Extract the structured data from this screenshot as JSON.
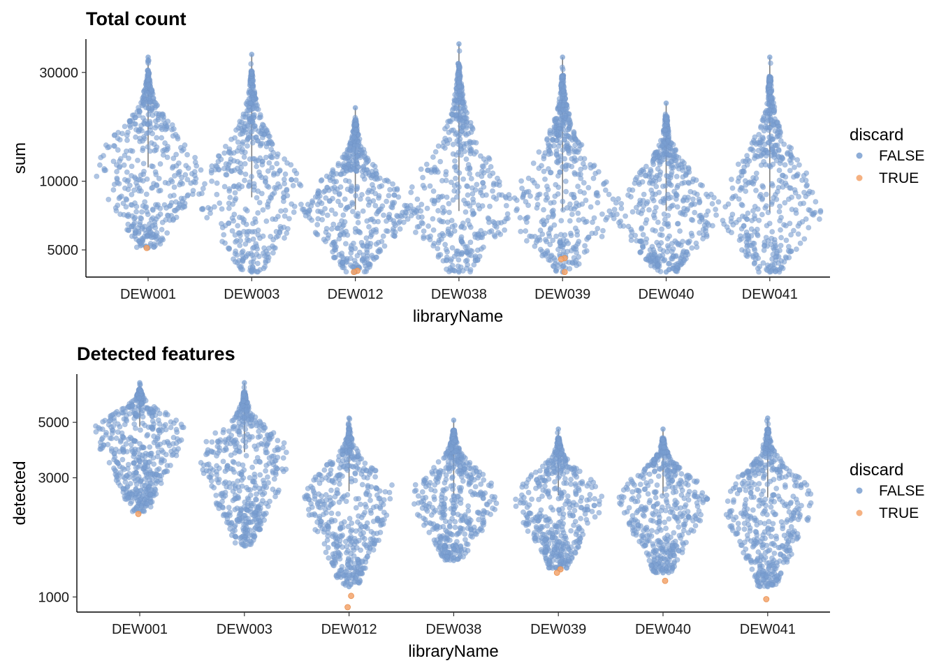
{
  "figure": {
    "legend": {
      "title": "discard",
      "items": [
        {
          "label": "FALSE",
          "color": "#7a9fd0"
        },
        {
          "label": "TRUE",
          "color": "#f3a36b"
        }
      ]
    }
  },
  "chart_data": [
    {
      "type": "scatter",
      "subtype": "violin-beeswarm",
      "title": "Total count",
      "xlabel": "libraryName",
      "ylabel": "sum",
      "y_scale": "log",
      "ylim": [
        3800,
        42000
      ],
      "yticks": [
        5000,
        10000,
        30000
      ],
      "ytick_labels": [
        "5000",
        "10000",
        "30000"
      ],
      "categories": [
        "DEW001",
        "DEW003",
        "DEW012",
        "DEW038",
        "DEW039",
        "DEW040",
        "DEW041"
      ],
      "series": [
        {
          "name": "FALSE",
          "color": "#7a9fd0",
          "summary": [
            {
              "min": 5100,
              "median": 11500,
              "max": 35000
            },
            {
              "min": 4000,
              "median": 8500,
              "max": 36000
            },
            {
              "min": 4000,
              "median": 7500,
              "max": 21000
            },
            {
              "min": 4000,
              "median": 7400,
              "max": 40000
            },
            {
              "min": 4000,
              "median": 7400,
              "max": 35000
            },
            {
              "min": 4000,
              "median": 7400,
              "max": 22000
            },
            {
              "min": 4000,
              "median": 7300,
              "max": 35000
            }
          ]
        },
        {
          "name": "TRUE",
          "color": "#f3a36b",
          "points": [
            {
              "category": "DEW001",
              "y": 5100
            },
            {
              "category": "DEW012",
              "y": 4050
            },
            {
              "category": "DEW012",
              "y": 4000
            },
            {
              "category": "DEW039",
              "y": 4600
            },
            {
              "category": "DEW039",
              "y": 4550
            },
            {
              "category": "DEW039",
              "y": 4000
            }
          ]
        }
      ],
      "legend": "right"
    },
    {
      "type": "scatter",
      "subtype": "violin-beeswarm",
      "title": "Detected features",
      "xlabel": "libraryName",
      "ylabel": "detected",
      "y_scale": "log",
      "ylim": [
        870,
        7800
      ],
      "yticks": [
        1000,
        3000,
        5000
      ],
      "ytick_labels": [
        "1000",
        "3000",
        "5000"
      ],
      "categories": [
        "DEW001",
        "DEW003",
        "DEW012",
        "DEW038",
        "DEW039",
        "DEW040",
        "DEW041"
      ],
      "series": [
        {
          "name": "FALSE",
          "color": "#7a9fd0",
          "summary": [
            {
              "min": 2200,
              "median": 4800,
              "max": 7200
            },
            {
              "min": 1600,
              "median": 3800,
              "max": 7200
            },
            {
              "min": 1100,
              "median": 2650,
              "max": 5200
            },
            {
              "min": 1400,
              "median": 2550,
              "max": 5100
            },
            {
              "min": 1300,
              "median": 2550,
              "max": 4700
            },
            {
              "min": 1250,
              "median": 2550,
              "max": 4700
            },
            {
              "min": 1100,
              "median": 2500,
              "max": 5200
            }
          ]
        },
        {
          "name": "TRUE",
          "color": "#f3a36b",
          "points": [
            {
              "category": "DEW001",
              "y": 2150
            },
            {
              "category": "DEW012",
              "y": 1010
            },
            {
              "category": "DEW012",
              "y": 910
            },
            {
              "category": "DEW039",
              "y": 1290
            },
            {
              "category": "DEW039",
              "y": 1250
            },
            {
              "category": "DEW040",
              "y": 1160
            },
            {
              "category": "DEW041",
              "y": 980
            }
          ]
        }
      ],
      "legend": "right"
    }
  ]
}
